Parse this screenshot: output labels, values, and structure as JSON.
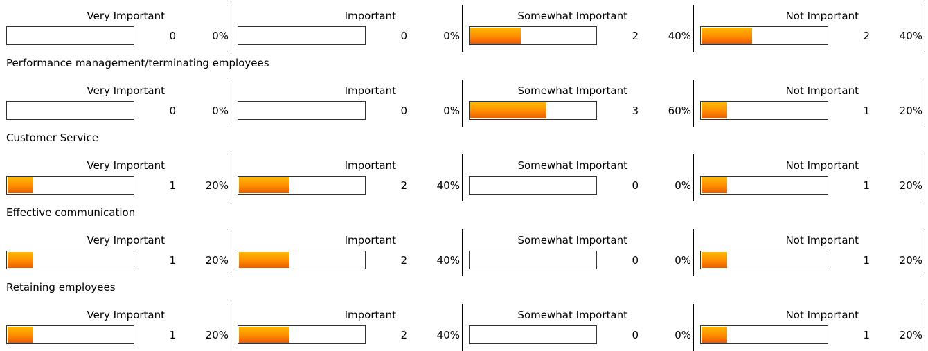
{
  "accent_color": "#ff8c00",
  "rows": [
    {
      "title": "",
      "responses": [
        {
          "label": "Very Important",
          "count": "0",
          "percent": "0%",
          "fraction": 0
        },
        {
          "label": "Important",
          "count": "0",
          "percent": "0%",
          "fraction": 0
        },
        {
          "label": "Somewhat Important",
          "count": "2",
          "percent": "40%",
          "fraction": 0.4
        },
        {
          "label": "Not Important",
          "count": "2",
          "percent": "40%",
          "fraction": 0.4
        }
      ]
    },
    {
      "title": "Performance management/terminating employees",
      "responses": [
        {
          "label": "Very Important",
          "count": "0",
          "percent": "0%",
          "fraction": 0
        },
        {
          "label": "Important",
          "count": "0",
          "percent": "0%",
          "fraction": 0
        },
        {
          "label": "Somewhat Important",
          "count": "3",
          "percent": "60%",
          "fraction": 0.6
        },
        {
          "label": "Not Important",
          "count": "1",
          "percent": "20%",
          "fraction": 0.2
        }
      ]
    },
    {
      "title": "Customer Service",
      "responses": [
        {
          "label": "Very Important",
          "count": "1",
          "percent": "20%",
          "fraction": 0.2
        },
        {
          "label": "Important",
          "count": "2",
          "percent": "40%",
          "fraction": 0.4
        },
        {
          "label": "Somewhat Important",
          "count": "0",
          "percent": "0%",
          "fraction": 0
        },
        {
          "label": "Not Important",
          "count": "1",
          "percent": "20%",
          "fraction": 0.2
        }
      ]
    },
    {
      "title": "Effective communication",
      "responses": [
        {
          "label": "Very Important",
          "count": "1",
          "percent": "20%",
          "fraction": 0.2
        },
        {
          "label": "Important",
          "count": "2",
          "percent": "40%",
          "fraction": 0.4
        },
        {
          "label": "Somewhat Important",
          "count": "0",
          "percent": "0%",
          "fraction": 0
        },
        {
          "label": "Not Important",
          "count": "1",
          "percent": "20%",
          "fraction": 0.2
        }
      ]
    },
    {
      "title": "Retaining employees",
      "responses": [
        {
          "label": "Very Important",
          "count": "1",
          "percent": "20%",
          "fraction": 0.2
        },
        {
          "label": "Important",
          "count": "2",
          "percent": "40%",
          "fraction": 0.4
        },
        {
          "label": "Somewhat Important",
          "count": "0",
          "percent": "0%",
          "fraction": 0
        },
        {
          "label": "Not Important",
          "count": "1",
          "percent": "20%",
          "fraction": 0.2
        }
      ]
    }
  ]
}
